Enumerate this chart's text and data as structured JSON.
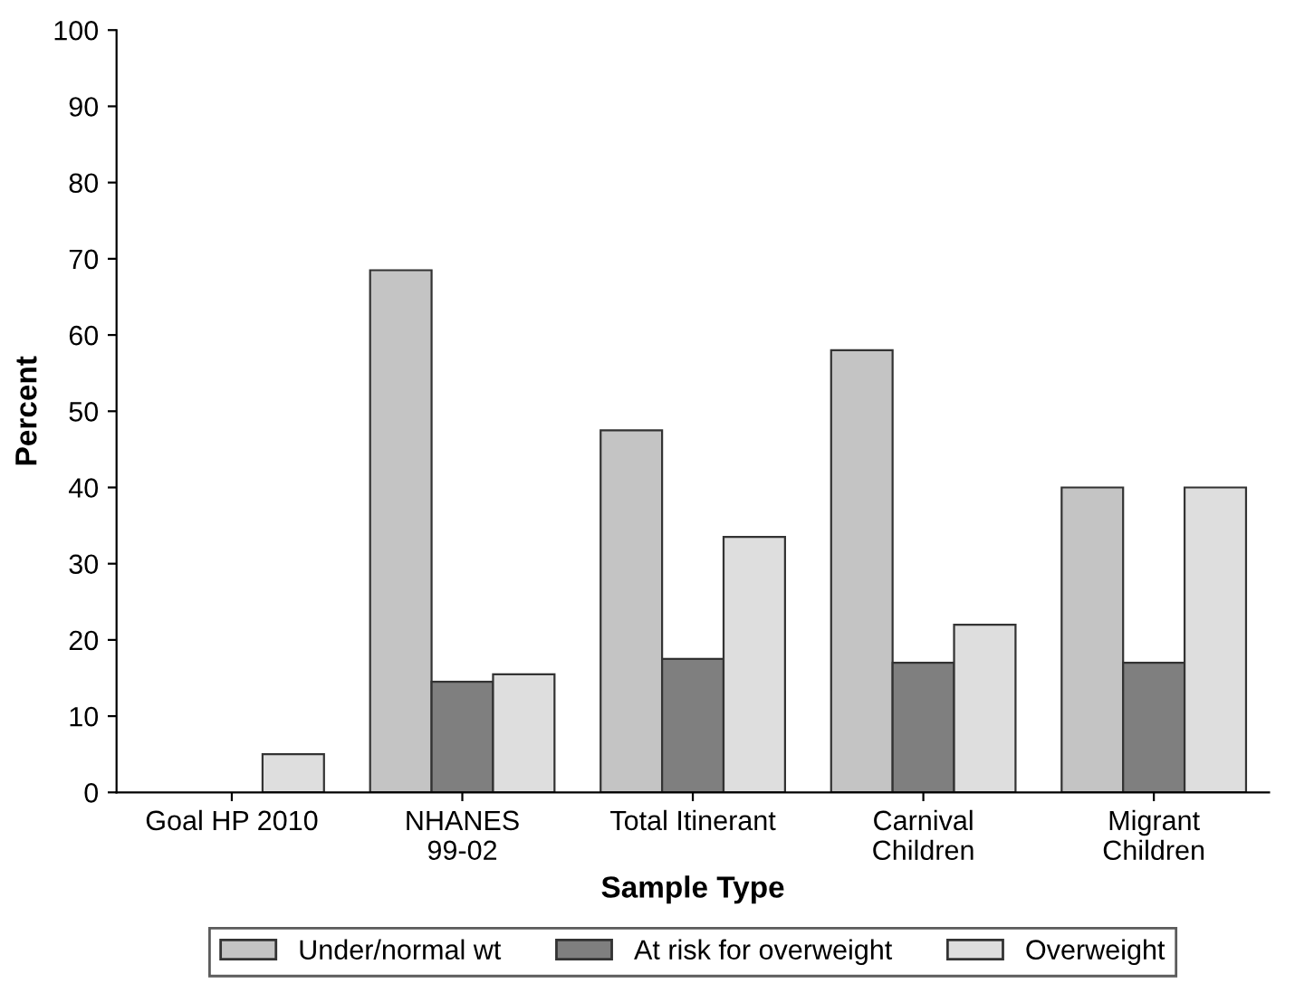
{
  "chart_data": {
    "type": "bar",
    "xlabel": "Sample Type",
    "ylabel": "Percent",
    "categories": [
      "Goal HP 2010",
      "NHANES\n99-02",
      "Total Itinerant",
      "Carnival\nChildren",
      "Migrant\nChildren"
    ],
    "series": [
      {
        "name": "Under/normal wt",
        "color": "#c4c4c4",
        "values": [
          null,
          68.5,
          47.5,
          58,
          40
        ]
      },
      {
        "name": "At risk for overweight",
        "color": "#7f7f7f",
        "values": [
          null,
          14.5,
          17.5,
          17,
          17
        ]
      },
      {
        "name": "Overweight",
        "color": "#dedede",
        "values": [
          5,
          15.5,
          33.5,
          22,
          40
        ]
      }
    ],
    "ylim": [
      0,
      100
    ],
    "yticks": [
      0,
      10,
      20,
      30,
      40,
      50,
      60,
      70,
      80,
      90,
      100
    ],
    "grid": false,
    "legend": "bottom"
  }
}
